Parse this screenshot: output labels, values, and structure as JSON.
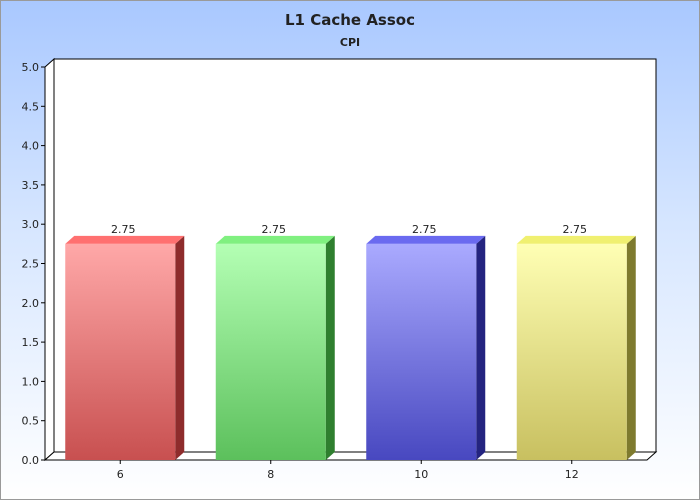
{
  "chart_data": {
    "type": "bar",
    "title": "L1 Cache Assoc",
    "subtitle": "CPI",
    "xlabel": "",
    "ylabel": "",
    "categories": [
      "6",
      "8",
      "10",
      "12"
    ],
    "values": [
      2.75,
      2.75,
      2.75,
      2.75
    ],
    "data_labels": [
      "2.75",
      "2.75",
      "2.75",
      "2.75"
    ],
    "ylim": [
      0,
      5.0
    ],
    "y_ticks": [
      "0.0",
      "0.5",
      "1.0",
      "1.5",
      "2.0",
      "2.5",
      "3.0",
      "3.5",
      "4.0",
      "4.5",
      "5.0"
    ],
    "grid": false,
    "legend": "none",
    "colors": [
      {
        "top": "#ffa8a8",
        "bottom": "#c85050",
        "side": "#8e2c2c",
        "cap": "#ff7070"
      },
      {
        "top": "#b4ffb4",
        "bottom": "#5cc05c",
        "side": "#2f7f2f",
        "cap": "#80f080"
      },
      {
        "top": "#aaaaff",
        "bottom": "#4848c0",
        "side": "#242480",
        "cap": "#6a6af0"
      },
      {
        "top": "#ffffb4",
        "bottom": "#c8c060",
        "side": "#7e7a2e",
        "cap": "#f0f070"
      }
    ]
  }
}
